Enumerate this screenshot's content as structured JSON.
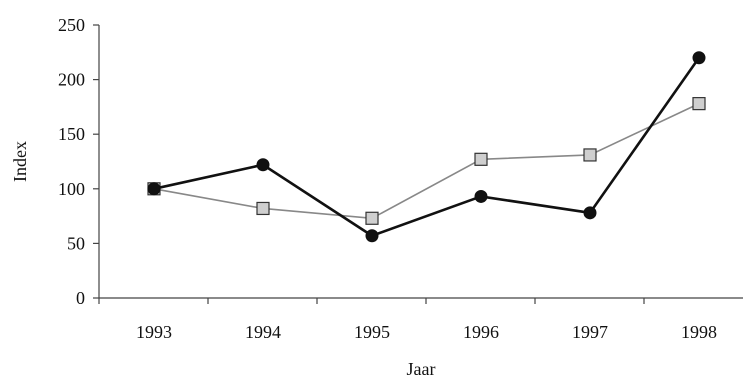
{
  "chart_data": {
    "type": "line",
    "title": "",
    "xlabel": "Jaar",
    "ylabel": "Index",
    "categories": [
      "1993",
      "1994",
      "1995",
      "1996",
      "1997",
      "1998"
    ],
    "ylim": [
      0,
      250
    ],
    "yticks": [
      "0",
      "50",
      "100",
      "150",
      "200",
      "250"
    ],
    "grid": false,
    "legend": "none",
    "series": [
      {
        "values": [
          100,
          122,
          57,
          93,
          78,
          220
        ],
        "color": "#111111",
        "marker": "circle"
      },
      {
        "values": [
          100,
          82,
          73,
          127,
          131,
          178
        ],
        "color": "#888888",
        "marker": "square",
        "marker_fill": "#cfcfcf"
      }
    ]
  }
}
